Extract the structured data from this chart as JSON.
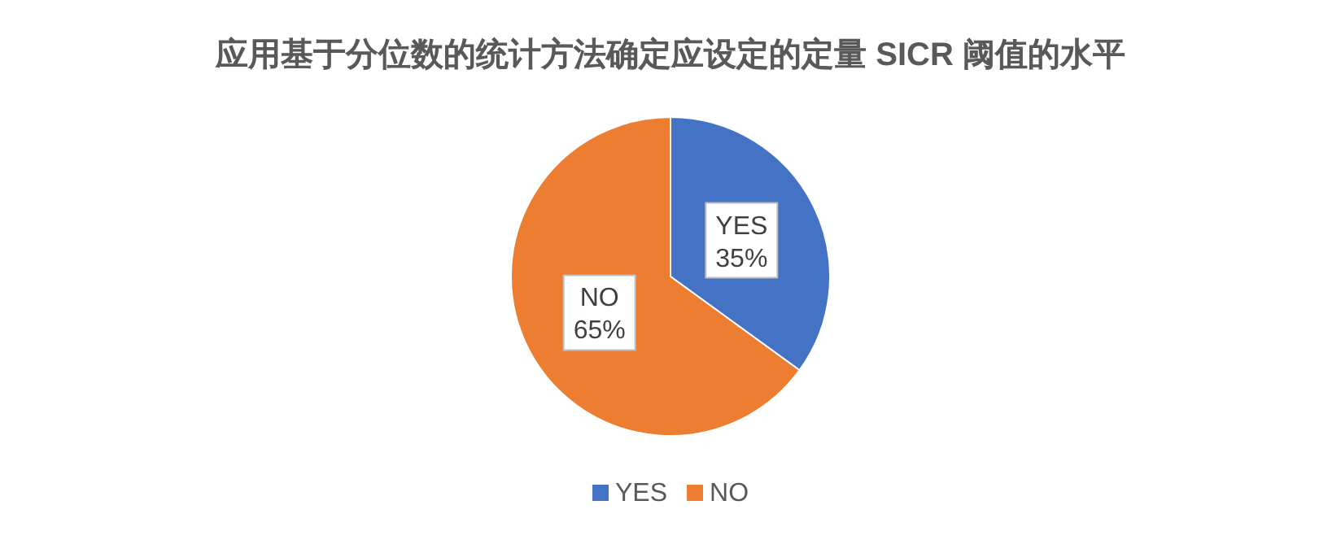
{
  "chart_data": {
    "type": "pie",
    "title": "应用基于分位数的统计方法确定应设定的定量 SICR 阈值的水平",
    "categories": [
      "YES",
      "NO"
    ],
    "values": [
      35,
      65
    ],
    "colors": [
      "#4472c4",
      "#ed7d31"
    ],
    "value_labels": [
      "35%",
      "65%"
    ],
    "legend": "bottom"
  }
}
